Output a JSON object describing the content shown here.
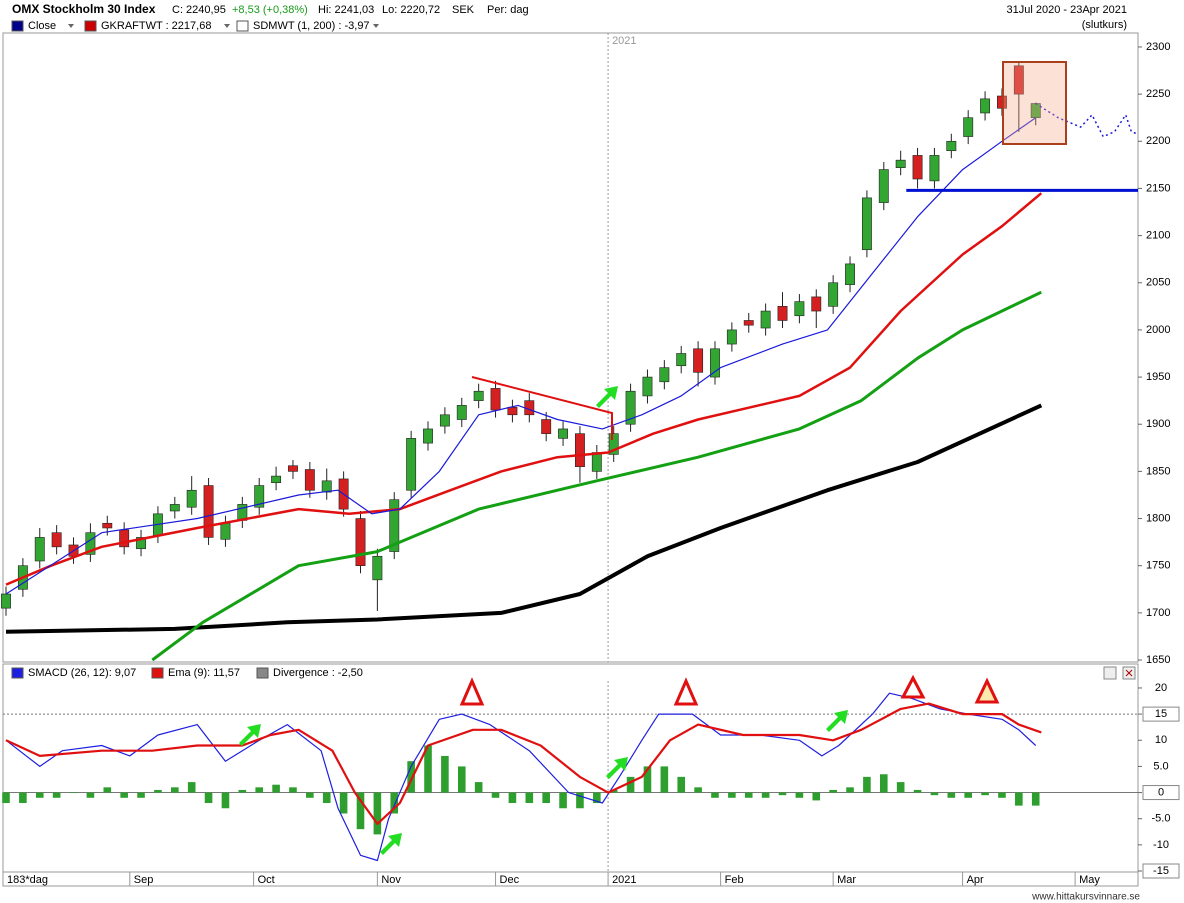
{
  "header": {
    "title": "OMX Stockholm 30 Index",
    "close": "C: 2240,95",
    "change": "+8,53 (+0,38%)",
    "high": "Hi: 2241,03",
    "low": "Lo: 2220,72",
    "currency": "SEK",
    "period": "Per: dag",
    "range": "31Jul 2020 - 23Apr 2021",
    "mode": "(slutkurs)"
  },
  "footer": "www.hittakursvinnare.se",
  "chart_data": [
    {
      "type": "candlestick",
      "legend": [
        {
          "name": "Close",
          "color": "#00008b"
        },
        {
          "name": "GKRAFTWT : 2217,68",
          "color": "#cc0000"
        },
        {
          "name": "SDMWT (1, 200) : -3,97",
          "color": "#ffffff"
        }
      ],
      "xlim": [
        0,
        201
      ],
      "ylim": [
        1647.9,
        2314.8
      ],
      "yticks": [
        1650,
        1700,
        1750,
        1800,
        1850,
        1900,
        1950,
        2000,
        2050,
        2100,
        2150,
        2200,
        2250,
        2300
      ],
      "year_marker": {
        "value": 107,
        "label": "2021"
      },
      "up_color": "#33a532",
      "down_color": "#d42020",
      "x": [
        0,
        3,
        6,
        9,
        12,
        15,
        18,
        21,
        24,
        27,
        30,
        33,
        36,
        39,
        42,
        45,
        48,
        51,
        54,
        57,
        60,
        63,
        66,
        69,
        72,
        75,
        78,
        81,
        84,
        87,
        90,
        93,
        96,
        99,
        102,
        105,
        108,
        111,
        114,
        117,
        120,
        123,
        126,
        129,
        132,
        135,
        138,
        141,
        144,
        147,
        150,
        153,
        156,
        159,
        162,
        165,
        168,
        171,
        174,
        177,
        180,
        183
      ],
      "open": [
        1705,
        1725,
        1755,
        1785,
        1772,
        1762,
        1795,
        1788,
        1768,
        1782,
        1808,
        1812,
        1835,
        1778,
        1798,
        1812,
        1838,
        1856,
        1852,
        1828,
        1842,
        1800,
        1735,
        1765,
        1830,
        1880,
        1898,
        1905,
        1925,
        1938,
        1918,
        1925,
        1905,
        1885,
        1890,
        1850,
        1868,
        1900,
        1930,
        1945,
        1962,
        1980,
        1950,
        1985,
        2010,
        2002,
        2025,
        2015,
        2035,
        2025,
        2048,
        2085,
        2135,
        2172,
        2185,
        2158,
        2190,
        2205,
        2230,
        2248,
        2280,
        2225
      ],
      "high": [
        1728,
        1758,
        1790,
        1793,
        1780,
        1795,
        1803,
        1796,
        1788,
        1813,
        1823,
        1845,
        1843,
        1803,
        1823,
        1843,
        1855,
        1862,
        1860,
        1853,
        1850,
        1808,
        1768,
        1828,
        1893,
        1903,
        1918,
        1928,
        1943,
        1946,
        1926,
        1933,
        1913,
        1903,
        1898,
        1878,
        1898,
        1943,
        1958,
        1968,
        1983,
        1988,
        1988,
        2008,
        2018,
        2028,
        2040,
        2038,
        2043,
        2058,
        2078,
        2148,
        2178,
        2190,
        2193,
        2193,
        2208,
        2233,
        2253,
        2256,
        2285,
        2241
      ],
      "low": [
        1697,
        1717,
        1747,
        1762,
        1752,
        1754,
        1782,
        1762,
        1760,
        1774,
        1800,
        1804,
        1772,
        1770,
        1790,
        1804,
        1830,
        1842,
        1822,
        1820,
        1802,
        1742,
        1702,
        1757,
        1822,
        1872,
        1890,
        1897,
        1917,
        1907,
        1902,
        1902,
        1882,
        1877,
        1838,
        1842,
        1860,
        1892,
        1922,
        1937,
        1954,
        1940,
        1942,
        1977,
        1997,
        1994,
        2002,
        2007,
        2002,
        2017,
        2040,
        2077,
        2127,
        2164,
        2150,
        2150,
        2182,
        2197,
        2222,
        2227,
        2210,
        2217
      ],
      "close": [
        1720,
        1750,
        1780,
        1770,
        1760,
        1785,
        1790,
        1770,
        1780,
        1805,
        1815,
        1830,
        1780,
        1795,
        1815,
        1835,
        1845,
        1850,
        1830,
        1840,
        1810,
        1750,
        1760,
        1820,
        1885,
        1895,
        1910,
        1920,
        1935,
        1915,
        1910,
        1910,
        1890,
        1895,
        1855,
        1870,
        1890,
        1935,
        1950,
        1960,
        1975,
        1955,
        1980,
        2000,
        2005,
        2020,
        2010,
        2030,
        2020,
        2050,
        2070,
        2140,
        2170,
        2180,
        2160,
        2185,
        2200,
        2225,
        2245,
        2235,
        2250,
        2240
      ],
      "lines": [
        {
          "color": "#000000",
          "width": 4,
          "style": "solid",
          "x": [
            0,
            30,
            50,
            66,
            88,
            102,
            114,
            127,
            146,
            162,
            184
          ],
          "values": [
            1680,
            1683,
            1690,
            1693,
            1700,
            1720,
            1760,
            1790,
            1830,
            1860,
            1920
          ]
        },
        {
          "color": "#13a013",
          "width": 3,
          "style": "solid",
          "x": [
            26,
            35,
            52,
            66,
            70,
            84,
            105,
            123,
            141,
            152,
            162,
            170,
            184
          ],
          "values": [
            1650,
            1690,
            1750,
            1765,
            1775,
            1810,
            1840,
            1865,
            1895,
            1925,
            1970,
            2000,
            2040
          ]
        },
        {
          "color": "#e01010",
          "width": 2.5,
          "style": "solid",
          "x": [
            0,
            8,
            17,
            34,
            52,
            61,
            70,
            79,
            88,
            98,
            107,
            115,
            123,
            141,
            150,
            159,
            170,
            177,
            184
          ],
          "values": [
            1730,
            1750,
            1770,
            1790,
            1810,
            1805,
            1810,
            1830,
            1850,
            1865,
            1870,
            1890,
            1905,
            1930,
            1960,
            2020,
            2080,
            2110,
            2145
          ]
        },
        {
          "color": "#1a1adb",
          "width": 1.2,
          "style": "solid",
          "x": [
            0,
            17,
            34,
            52,
            59,
            65,
            70,
            77,
            84,
            91,
            98,
            106,
            113,
            120,
            127,
            138,
            146,
            154,
            162,
            170,
            177,
            183
          ],
          "values": [
            1720,
            1785,
            1800,
            1825,
            1830,
            1805,
            1810,
            1850,
            1910,
            1920,
            1905,
            1895,
            1910,
            1930,
            1960,
            1985,
            2000,
            2060,
            2120,
            2170,
            2200,
            2225
          ]
        },
        {
          "color": "#1a1adb",
          "width": 1.5,
          "style": "dotted",
          "x": [
            183,
            187,
            191,
            193,
            195,
            197,
            199,
            200,
            201
          ],
          "values": [
            2240,
            2225,
            2215,
            2228,
            2205,
            2210,
            2228,
            2210,
            2208
          ]
        }
      ],
      "hline": {
        "value": 2148,
        "from": 160,
        "color": "#0010d0"
      }
    },
    {
      "type": "macd",
      "x_label": "183*dag",
      "xlim": [
        0,
        201
      ],
      "ylim": [
        -15.19,
        21.33
      ],
      "yticks": [
        20,
        15,
        10,
        {
          "value": 5,
          "label": "5.0"
        },
        0,
        {
          "value": -5,
          "label": "-5.0"
        },
        -10,
        -15
      ],
      "reference_lines": [
        15,
        0
      ],
      "xticks": [
        {
          "value": 22,
          "label": "Sep"
        },
        {
          "value": 44,
          "label": "Oct"
        },
        {
          "value": 66,
          "label": "Nov"
        },
        {
          "value": 87,
          "label": "Dec"
        },
        {
          "value": 107,
          "label": "2021"
        },
        {
          "value": 127,
          "label": "Feb"
        },
        {
          "value": 147,
          "label": "Mar"
        },
        {
          "value": 170,
          "label": "Apr"
        },
        {
          "value": 190,
          "label": "May"
        }
      ],
      "series": [
        {
          "name": "SMACD (26, 12): 9,07",
          "color": "#1f1fe0",
          "x": [
            0,
            6,
            10,
            17,
            22,
            27,
            34,
            39,
            45,
            50,
            56,
            59,
            63,
            66,
            68,
            72,
            77,
            81,
            86,
            93,
            100,
            106,
            109,
            113,
            116,
            122,
            127,
            134,
            141,
            145,
            148,
            154,
            157,
            161,
            166,
            171,
            177,
            180,
            183
          ],
          "values": [
            10,
            5,
            8,
            9,
            7,
            11,
            13,
            6,
            10,
            13,
            8,
            -3,
            -12,
            -13,
            -5,
            5,
            14,
            15,
            13,
            8,
            0,
            -2,
            3,
            10,
            15,
            15,
            11,
            11,
            10,
            7,
            9,
            15,
            19,
            18,
            16,
            15,
            14,
            12,
            9
          ]
        },
        {
          "name": "Ema (9): 11,57",
          "color": "#e01010",
          "x": [
            0,
            6,
            17,
            26,
            34,
            42,
            47,
            52,
            58,
            62,
            66,
            70,
            75,
            83,
            88,
            95,
            102,
            107,
            113,
            118,
            123,
            131,
            141,
            147,
            152,
            159,
            164,
            170,
            177,
            180,
            184
          ],
          "values": [
            10,
            7,
            8,
            8,
            9,
            9,
            11,
            12,
            8,
            0,
            -6,
            -2,
            9,
            12,
            12,
            9,
            3,
            0,
            3,
            10,
            13,
            11,
            11,
            10,
            12,
            16,
            17,
            15,
            15,
            13,
            11.5
          ]
        }
      ],
      "histogram": {
        "name": "Divergence : -2,50",
        "legend_color": "#888888",
        "color": "#2e9e2e",
        "x": [
          0,
          3,
          6,
          9,
          12,
          15,
          18,
          21,
          24,
          27,
          30,
          33,
          36,
          39,
          42,
          45,
          48,
          51,
          54,
          57,
          60,
          63,
          66,
          69,
          72,
          75,
          78,
          81,
          84,
          87,
          90,
          93,
          96,
          99,
          102,
          105,
          108,
          111,
          114,
          117,
          120,
          123,
          126,
          129,
          132,
          135,
          138,
          141,
          144,
          147,
          150,
          153,
          156,
          159,
          162,
          165,
          168,
          171,
          174,
          177,
          180,
          183
        ],
        "values": [
          -2,
          -2,
          -1,
          -1,
          0,
          -1,
          1,
          -1,
          -1,
          0.5,
          1,
          2,
          -2,
          -3,
          0.5,
          1,
          1.5,
          1,
          -1,
          -2,
          -4,
          -7,
          -8,
          -4,
          6,
          9,
          7,
          5,
          2,
          -1,
          -2,
          -2,
          -2,
          -3,
          -3,
          -2,
          0.5,
          3,
          5,
          5,
          3,
          1,
          -1,
          -1,
          -1,
          -1,
          -0.5,
          -1,
          -1.5,
          0.5,
          1,
          3,
          3.5,
          2,
          0.5,
          -0.5,
          -1,
          -1,
          -0.5,
          -1,
          -2.5,
          -2.5
        ]
      }
    }
  ]
}
